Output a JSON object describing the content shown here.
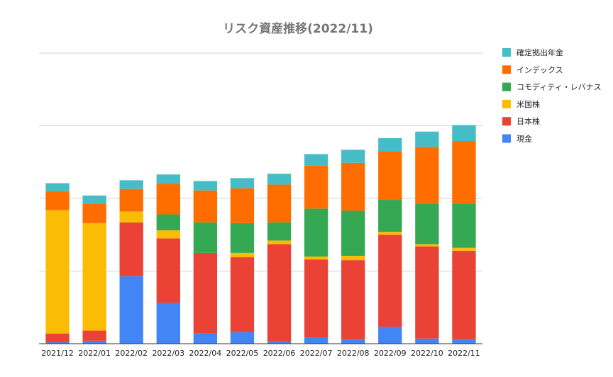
{
  "chart_data": {
    "type": "bar",
    "stacked": true,
    "title": "リスク資産推移(2022/11)",
    "xlabel": "",
    "ylabel": "",
    "ylim": [
      0,
      400
    ],
    "grid": true,
    "legend_position": "right",
    "categories": [
      "2021/12",
      "2022/01",
      "2022/02",
      "2022/03",
      "2022/04",
      "2022/05",
      "2022/06",
      "2022/07",
      "2022/08",
      "2022/09",
      "2022/10",
      "2022/11"
    ],
    "series": [
      {
        "name": "現金",
        "color": "#4285f4",
        "values": [
          2,
          4,
          93,
          56,
          14,
          16,
          3,
          8,
          6,
          23,
          7,
          6
        ]
      },
      {
        "name": "日本株",
        "color": "#ea4335",
        "values": [
          12,
          14,
          74,
          89,
          111,
          103,
          134,
          108,
          109,
          127,
          127,
          122
        ]
      },
      {
        "name": "米国株",
        "color": "#fbbc04",
        "values": [
          170,
          148,
          15,
          11,
          0,
          6,
          5,
          4,
          6,
          4,
          3,
          4
        ]
      },
      {
        "name": "コモディティ・レバナス",
        "color": "#34a853",
        "values": [
          0,
          0,
          0,
          22,
          42,
          41,
          25,
          66,
          62,
          44,
          56,
          61
        ]
      },
      {
        "name": "インデックス",
        "color": "#ff6d01",
        "values": [
          26,
          27,
          31,
          42,
          44,
          48,
          52,
          59,
          66,
          67,
          78,
          86
        ]
      },
      {
        "name": "確定拠出年金",
        "color": "#46bdc6",
        "values": [
          11,
          11,
          12,
          13,
          13,
          14,
          15,
          16,
          18,
          18,
          21,
          22
        ]
      }
    ]
  }
}
